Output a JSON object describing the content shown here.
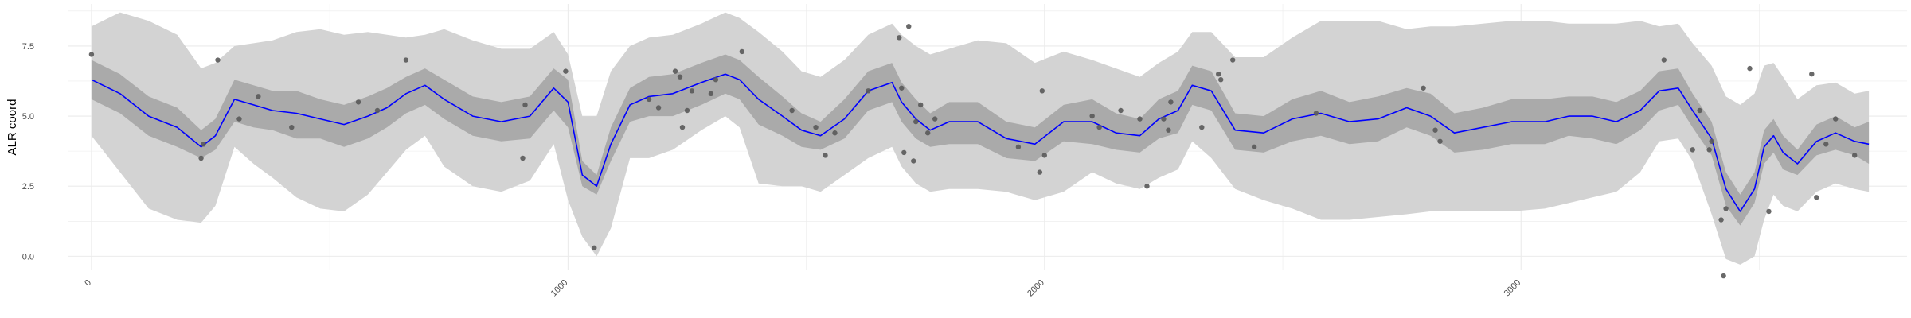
{
  "chart_data": {
    "type": "line",
    "title": "",
    "xlabel": "",
    "ylabel": "ALR coord",
    "xlim": [
      -50,
      3810
    ],
    "ylim": [
      -0.5,
      9.0
    ],
    "x_ticks": [
      0,
      1000,
      2000,
      3000
    ],
    "x_tick_labels": [
      "0",
      "1000",
      "2000",
      "3000"
    ],
    "y_ticks": [
      0.0,
      2.5,
      5.0,
      7.5
    ],
    "y_tick_labels": [
      "0.0",
      "2.5",
      "5.0",
      "7.5"
    ],
    "grid": true,
    "legend": "none",
    "colors": {
      "mean_line": "#0000ff",
      "inner_band": "#aaaaaa",
      "outer_band": "#d3d3d3",
      "points": "#595959",
      "grid": "#ebebeb"
    },
    "series": [
      {
        "kind": "smooth",
        "x": [
          0,
          60,
          120,
          180,
          230,
          260,
          300,
          340,
          380,
          430,
          480,
          530,
          580,
          620,
          660,
          700,
          740,
          800,
          860,
          920,
          970,
          1000,
          1030,
          1060,
          1090,
          1130,
          1170,
          1220,
          1280,
          1330,
          1360,
          1400,
          1450,
          1490,
          1530,
          1580,
          1630,
          1680,
          1700,
          1730,
          1760,
          1800,
          1860,
          1920,
          1980,
          2040,
          2100,
          2150,
          2200,
          2240,
          2280,
          2310,
          2350,
          2400,
          2460,
          2520,
          2580,
          2640,
          2700,
          2760,
          2810,
          2860,
          2920,
          2980,
          3050,
          3100,
          3150,
          3200,
          3250,
          3290,
          3330,
          3360,
          3400,
          3430,
          3460,
          3490,
          3510,
          3530,
          3550,
          3580,
          3620,
          3660,
          3700,
          3730
        ],
        "mean": [
          6.3,
          5.8,
          5.0,
          4.6,
          3.9,
          4.3,
          5.6,
          5.4,
          5.2,
          5.1,
          4.9,
          4.7,
          5.0,
          5.3,
          5.8,
          6.1,
          5.6,
          5.0,
          4.8,
          5.0,
          6.0,
          5.5,
          2.9,
          2.5,
          4.0,
          5.4,
          5.7,
          5.8,
          6.2,
          6.5,
          6.3,
          5.6,
          5.0,
          4.5,
          4.3,
          4.9,
          5.9,
          6.2,
          5.5,
          4.9,
          4.5,
          4.8,
          4.8,
          4.2,
          4.0,
          4.8,
          4.8,
          4.4,
          4.3,
          4.9,
          5.2,
          6.1,
          5.9,
          4.5,
          4.4,
          4.9,
          5.1,
          4.8,
          4.9,
          5.3,
          5.0,
          4.4,
          4.6,
          4.8,
          4.8,
          5.0,
          5.0,
          4.8,
          5.2,
          5.9,
          6.0,
          5.2,
          4.2,
          2.4,
          1.6,
          2.4,
          3.9,
          4.3,
          3.7,
          3.3,
          4.1,
          4.4,
          4.1,
          4.0
        ],
        "inner_lower": [
          5.6,
          5.1,
          4.3,
          3.9,
          3.5,
          3.8,
          4.8,
          4.6,
          4.5,
          4.2,
          4.2,
          3.9,
          4.2,
          4.6,
          5.1,
          5.4,
          4.9,
          4.3,
          4.1,
          4.2,
          5.2,
          4.6,
          2.5,
          2.2,
          3.4,
          4.8,
          5.0,
          5.0,
          5.4,
          5.8,
          5.6,
          4.7,
          4.3,
          3.9,
          3.8,
          4.2,
          5.2,
          5.5,
          4.8,
          4.2,
          3.9,
          4.0,
          4.0,
          3.5,
          3.4,
          4.1,
          4.0,
          3.8,
          3.7,
          4.2,
          4.4,
          5.4,
          5.2,
          3.8,
          3.7,
          4.1,
          4.3,
          4.0,
          4.1,
          4.6,
          4.3,
          3.7,
          3.8,
          4.0,
          4.0,
          4.3,
          4.2,
          4.0,
          4.5,
          5.2,
          5.4,
          4.6,
          3.6,
          1.8,
          1.1,
          1.9,
          3.3,
          3.7,
          3.1,
          2.9,
          3.6,
          3.8,
          3.6,
          3.3
        ],
        "inner_upper": [
          7.0,
          6.5,
          5.7,
          5.3,
          4.5,
          4.9,
          6.3,
          6.1,
          5.9,
          5.9,
          5.6,
          5.4,
          5.7,
          6.0,
          6.4,
          6.7,
          6.3,
          5.7,
          5.5,
          5.7,
          6.7,
          6.3,
          3.4,
          2.9,
          4.6,
          6.0,
          6.4,
          6.5,
          6.9,
          7.2,
          7.0,
          6.4,
          5.7,
          5.1,
          4.8,
          5.6,
          6.6,
          6.9,
          6.2,
          5.6,
          5.1,
          5.5,
          5.5,
          4.8,
          4.6,
          5.4,
          5.6,
          5.1,
          4.9,
          5.6,
          5.9,
          6.8,
          6.6,
          5.1,
          5.0,
          5.6,
          5.9,
          5.5,
          5.7,
          6.0,
          5.8,
          5.1,
          5.3,
          5.6,
          5.6,
          5.7,
          5.7,
          5.5,
          5.9,
          6.6,
          6.7,
          5.8,
          4.8,
          3.0,
          2.2,
          3.0,
          4.5,
          4.9,
          4.3,
          3.8,
          4.7,
          5.0,
          4.6,
          4.8
        ],
        "outer_lower": [
          4.3,
          3.0,
          1.7,
          1.3,
          1.2,
          1.8,
          3.9,
          3.3,
          2.8,
          2.1,
          1.7,
          1.6,
          2.2,
          3.0,
          3.8,
          4.3,
          3.2,
          2.5,
          2.3,
          2.7,
          4.0,
          2.0,
          0.7,
          0.0,
          1.0,
          3.5,
          3.5,
          3.8,
          4.5,
          5.0,
          4.6,
          2.6,
          2.5,
          2.5,
          2.3,
          2.9,
          3.5,
          3.9,
          3.2,
          2.6,
          2.3,
          2.4,
          2.4,
          2.3,
          2.0,
          2.3,
          3.0,
          2.6,
          2.4,
          2.8,
          3.1,
          4.1,
          3.5,
          2.4,
          2.0,
          1.7,
          1.3,
          1.3,
          1.4,
          1.5,
          1.6,
          1.6,
          1.6,
          1.6,
          1.7,
          1.9,
          2.1,
          2.3,
          3.0,
          4.1,
          4.2,
          3.4,
          1.5,
          -0.1,
          -0.3,
          0.0,
          1.3,
          2.2,
          1.8,
          1.6,
          2.3,
          2.6,
          2.4,
          2.3
        ],
        "outer_upper": [
          8.2,
          8.7,
          8.4,
          7.9,
          6.7,
          6.9,
          7.5,
          7.6,
          7.7,
          8.0,
          8.1,
          7.9,
          8.0,
          7.9,
          7.8,
          7.9,
          8.1,
          7.7,
          7.4,
          7.4,
          8.0,
          7.2,
          5.0,
          5.0,
          6.6,
          7.5,
          7.8,
          7.9,
          8.3,
          8.7,
          8.5,
          8.0,
          7.3,
          6.6,
          6.4,
          7.0,
          7.9,
          8.3,
          7.9,
          7.5,
          7.2,
          7.4,
          7.7,
          7.6,
          6.9,
          7.3,
          7.0,
          6.7,
          6.4,
          6.9,
          7.3,
          8.0,
          8.0,
          7.1,
          7.1,
          7.8,
          8.4,
          8.4,
          8.4,
          8.1,
          8.2,
          8.2,
          8.3,
          8.4,
          8.4,
          8.3,
          8.3,
          8.3,
          8.4,
          8.2,
          8.3,
          7.6,
          6.8,
          5.7,
          5.4,
          5.8,
          6.8,
          6.9,
          6.4,
          5.6,
          6.1,
          6.2,
          5.8,
          5.9
        ]
      }
    ],
    "points": [
      {
        "x": 0,
        "y": 7.2
      },
      {
        "x": 230,
        "y": 3.5
      },
      {
        "x": 235,
        "y": 4.0
      },
      {
        "x": 265,
        "y": 7.0
      },
      {
        "x": 310,
        "y": 4.9
      },
      {
        "x": 350,
        "y": 5.7
      },
      {
        "x": 420,
        "y": 4.6
      },
      {
        "x": 560,
        "y": 5.5
      },
      {
        "x": 600,
        "y": 5.2
      },
      {
        "x": 660,
        "y": 7.0
      },
      {
        "x": 905,
        "y": 3.5
      },
      {
        "x": 910,
        "y": 5.4
      },
      {
        "x": 995,
        "y": 6.6
      },
      {
        "x": 1055,
        "y": 0.3
      },
      {
        "x": 1170,
        "y": 5.6
      },
      {
        "x": 1190,
        "y": 5.3
      },
      {
        "x": 1225,
        "y": 6.6
      },
      {
        "x": 1235,
        "y": 6.4
      },
      {
        "x": 1240,
        "y": 4.6
      },
      {
        "x": 1250,
        "y": 5.2
      },
      {
        "x": 1260,
        "y": 5.9
      },
      {
        "x": 1300,
        "y": 5.8
      },
      {
        "x": 1310,
        "y": 6.3
      },
      {
        "x": 1365,
        "y": 7.3
      },
      {
        "x": 1470,
        "y": 5.2
      },
      {
        "x": 1520,
        "y": 4.6
      },
      {
        "x": 1540,
        "y": 3.6
      },
      {
        "x": 1560,
        "y": 4.4
      },
      {
        "x": 1630,
        "y": 5.9
      },
      {
        "x": 1695,
        "y": 7.8
      },
      {
        "x": 1700,
        "y": 6.0
      },
      {
        "x": 1705,
        "y": 3.7
      },
      {
        "x": 1715,
        "y": 8.2
      },
      {
        "x": 1725,
        "y": 3.4
      },
      {
        "x": 1730,
        "y": 4.8
      },
      {
        "x": 1740,
        "y": 5.4
      },
      {
        "x": 1755,
        "y": 4.4
      },
      {
        "x": 1770,
        "y": 4.9
      },
      {
        "x": 1945,
        "y": 3.9
      },
      {
        "x": 1990,
        "y": 3.0
      },
      {
        "x": 2000,
        "y": 3.6
      },
      {
        "x": 1995,
        "y": 5.9
      },
      {
        "x": 2100,
        "y": 5.0
      },
      {
        "x": 2115,
        "y": 4.6
      },
      {
        "x": 2160,
        "y": 5.2
      },
      {
        "x": 2200,
        "y": 4.9
      },
      {
        "x": 2215,
        "y": 2.5
      },
      {
        "x": 2250,
        "y": 4.9
      },
      {
        "x": 2260,
        "y": 4.5
      },
      {
        "x": 2265,
        "y": 5.5
      },
      {
        "x": 2330,
        "y": 4.6
      },
      {
        "x": 2365,
        "y": 6.5
      },
      {
        "x": 2370,
        "y": 6.3
      },
      {
        "x": 2395,
        "y": 7.0
      },
      {
        "x": 2440,
        "y": 3.9
      },
      {
        "x": 2570,
        "y": 5.1
      },
      {
        "x": 2795,
        "y": 6.0
      },
      {
        "x": 2820,
        "y": 4.5
      },
      {
        "x": 2830,
        "y": 4.1
      },
      {
        "x": 3300,
        "y": 7.0
      },
      {
        "x": 3360,
        "y": 3.8
      },
      {
        "x": 3375,
        "y": 5.2
      },
      {
        "x": 3395,
        "y": 3.8
      },
      {
        "x": 3400,
        "y": 4.1
      },
      {
        "x": 3420,
        "y": 1.3
      },
      {
        "x": 3425,
        "y": -0.7
      },
      {
        "x": 3430,
        "y": 1.7
      },
      {
        "x": 3480,
        "y": 6.7
      },
      {
        "x": 3520,
        "y": 1.6
      },
      {
        "x": 3610,
        "y": 6.5
      },
      {
        "x": 3620,
        "y": 2.1
      },
      {
        "x": 3640,
        "y": 4.0
      },
      {
        "x": 3660,
        "y": 4.9
      },
      {
        "x": 3700,
        "y": 3.6
      }
    ]
  }
}
